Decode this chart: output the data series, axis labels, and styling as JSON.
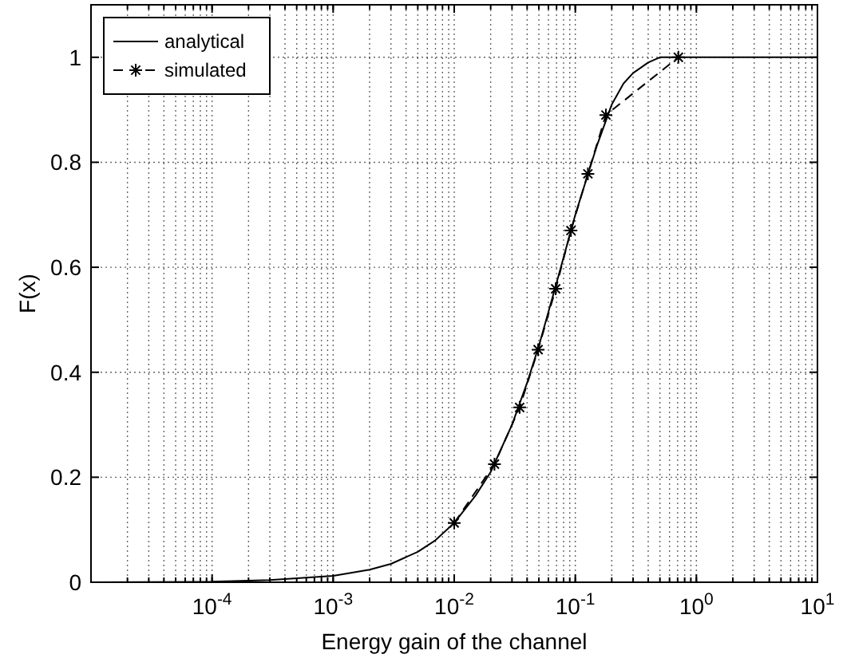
{
  "chart_data": {
    "type": "line",
    "xlabel": "Energy gain of the channel",
    "ylabel": "F(x)",
    "log": "x",
    "grid": true,
    "legend": "top left",
    "xlim": [
      1e-05,
      10
    ],
    "ylim": [
      0,
      1.1
    ],
    "xticks": [
      {
        "value": 0.0001,
        "label": "10$^{-4}$"
      },
      {
        "value": 0.001,
        "label": "10$^{-3}$"
      },
      {
        "value": 0.01,
        "label": "10$^{-2}$"
      },
      {
        "value": 0.1,
        "label": "10$^{-1}$"
      },
      {
        "value": 1,
        "label": "10$^{0}$"
      },
      {
        "value": 10,
        "label": "10$^{1}$"
      }
    ],
    "yticks": [
      0,
      0.2,
      0.4,
      0.6,
      0.8,
      1
    ],
    "series": [
      {
        "name": "analytical",
        "color": "#000000",
        "line_style": "solid",
        "marker": "none",
        "x": [
          1e-05,
          0.0001,
          0.0003,
          0.001,
          0.002,
          0.003,
          0.005,
          0.007,
          0.01,
          0.015,
          0.02,
          0.03,
          0.04,
          0.05,
          0.07,
          0.1,
          0.15,
          0.2,
          0.25,
          0.3,
          0.4,
          0.5,
          1,
          10
        ],
        "values": [
          0,
          0.001,
          0.004,
          0.012,
          0.024,
          0.035,
          0.058,
          0.08,
          0.113,
          0.165,
          0.21,
          0.3,
          0.38,
          0.45,
          0.57,
          0.7,
          0.83,
          0.91,
          0.95,
          0.97,
          0.99,
          1,
          1,
          1
        ]
      },
      {
        "name": "simulated",
        "color": "#000000",
        "line_style": "dashed",
        "marker": "cross",
        "x": [
          0.01,
          0.0215,
          0.0347,
          0.0493,
          0.0689,
          0.092,
          0.127,
          0.179,
          0.71
        ],
        "values": [
          0.113,
          0.225,
          0.333,
          0.443,
          0.559,
          0.67,
          0.778,
          0.89,
          1
        ]
      }
    ]
  }
}
